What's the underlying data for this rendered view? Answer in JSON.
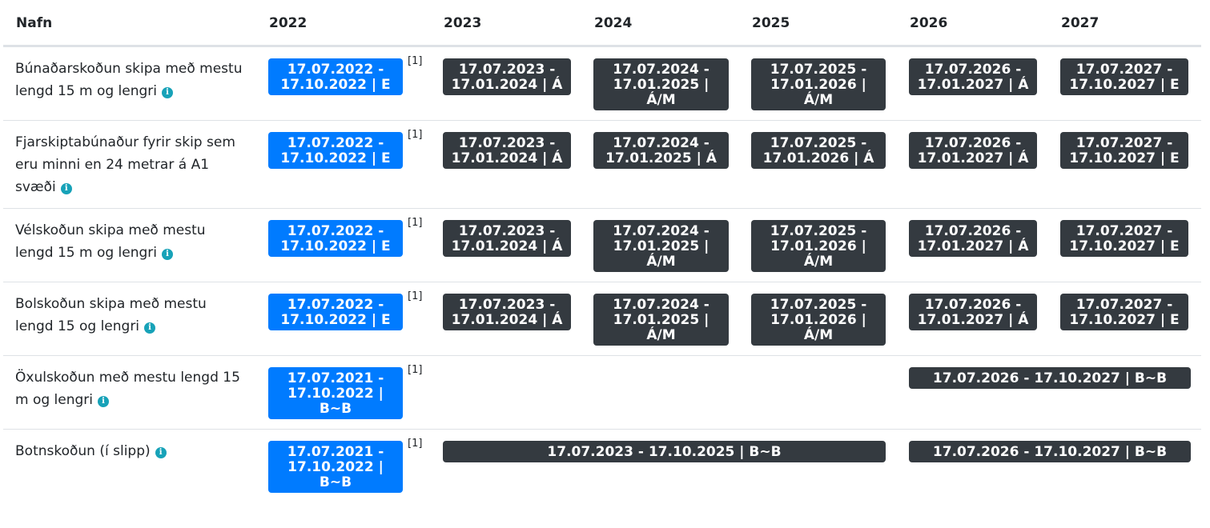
{
  "header": {
    "name": "Nafn",
    "years": [
      "2022",
      "2023",
      "2024",
      "2025",
      "2026",
      "2027"
    ]
  },
  "footnote": "[1]",
  "info_icon_glyph": "i",
  "colors": {
    "current_badge": "#007bff",
    "future_badge": "#343a40",
    "info_icon": "#17a2b8"
  },
  "rows": [
    {
      "name": "Búnaðarskoðun skipa með mestu lengd 15 m og lengri",
      "y2022": "17.07.2022 - 17.10.2022 | E",
      "y2023": "17.07.2023 - 17.01.2024 | Á",
      "y2024": "17.07.2024 - 17.01.2025 | Á/M",
      "y2025": "17.07.2025 - 17.01.2026 | Á/M",
      "y2026": "17.07.2026 - 17.01.2027 | Á",
      "y2027": "17.07.2027 - 17.10.2027 | E"
    },
    {
      "name": "Fjarskiptabúnaður fyrir skip sem eru minni en 24 metrar á A1 svæði",
      "y2022": "17.07.2022 - 17.10.2022 | E",
      "y2023": "17.07.2023 - 17.01.2024 | Á",
      "y2024": "17.07.2024 - 17.01.2025 | Á",
      "y2025": "17.07.2025 - 17.01.2026 | Á",
      "y2026": "17.07.2026 - 17.01.2027 | Á",
      "y2027": "17.07.2027 - 17.10.2027 | E"
    },
    {
      "name": "Vélskoðun skipa með mestu lengd 15 m og lengri",
      "y2022": "17.07.2022 - 17.10.2022 | E",
      "y2023": "17.07.2023 - 17.01.2024 | Á",
      "y2024": "17.07.2024 - 17.01.2025 | Á/M",
      "y2025": "17.07.2025 - 17.01.2026 | Á/M",
      "y2026": "17.07.2026 - 17.01.2027 | Á",
      "y2027": "17.07.2027 - 17.10.2027 | E"
    },
    {
      "name": "Bolskoðun skipa með mestu lengd 15 og lengri",
      "y2022": "17.07.2022 - 17.10.2022 | E",
      "y2023": "17.07.2023 - 17.01.2024 | Á",
      "y2024": "17.07.2024 - 17.01.2025 | Á/M",
      "y2025": "17.07.2025 - 17.01.2026 | Á/M",
      "y2026": "17.07.2026 - 17.01.2027 | Á",
      "y2027": "17.07.2027 - 17.10.2027 | E"
    },
    {
      "name": "Öxulskoðun með mestu lengd 15 m og lengri",
      "y2022": "17.07.2021 - 17.10.2022 | B~B",
      "y2026_2027": "17.07.2026 - 17.10.2027 | B~B"
    },
    {
      "name": "Botnskoðun (í slipp)",
      "y2022": "17.07.2021 - 17.10.2022 | B~B",
      "y2023_2025": "17.07.2023 - 17.10.2025 | B~B",
      "y2026_2027": "17.07.2026 - 17.10.2027 | B~B"
    }
  ]
}
